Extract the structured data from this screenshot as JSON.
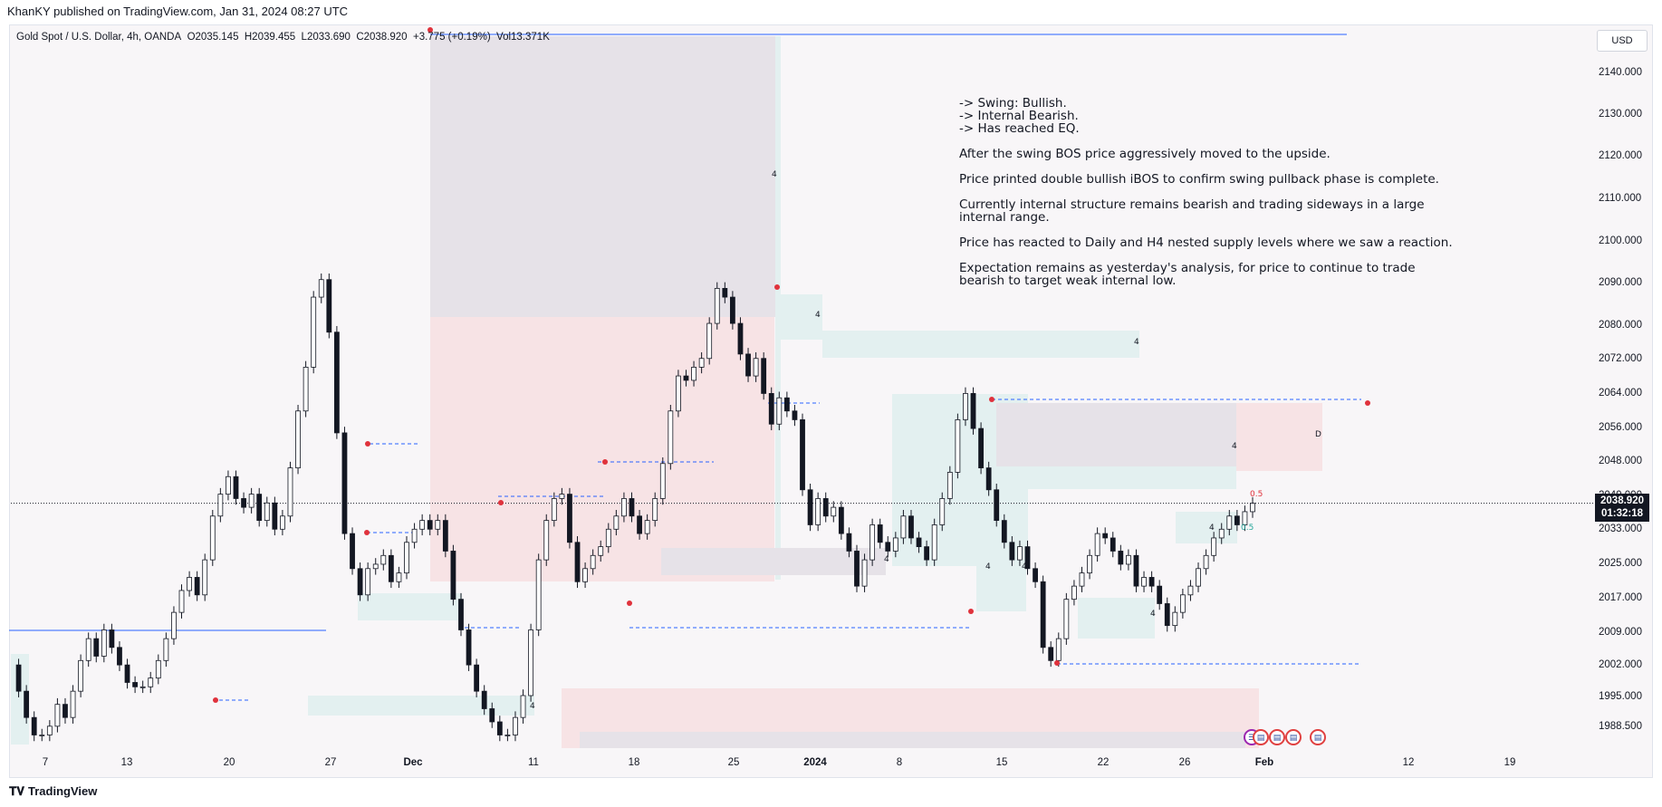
{
  "publish_bar": {
    "text": "KhanKY published on TradingView.com, Jan 31, 2024 08:27 UTC"
  },
  "legend": {
    "symbol": "Gold Spot / U.S. Dollar, 4h, OANDA",
    "open": "O2035.145",
    "high": "H2039.455",
    "low": "L2033.690",
    "close": "C2038.920",
    "change": "+3.775 (+0.19%)",
    "volume": "Vol13.371K"
  },
  "currency": "USD",
  "last_price": {
    "price": "2038.920",
    "countdown": "01:32:18"
  },
  "annotation": {
    "bullets": [
      "-> Swing: Bullish.",
      "-> Internal Bearish.",
      "-> Has reached EQ."
    ],
    "p1": "After the swing BOS price aggressively moved to the upside.",
    "p2": "Price printed double bullish iBOS to confirm swing pullback phase is complete.",
    "p3a": "Currently internal structure remains bearish and trading sideways in a large",
    "p3b": "internal range.",
    "p4": "Price has reacted to Daily and H4 nested supply levels where we saw a reaction.",
    "p5a": "Expectation remains as yesterday's analysis, for price to continue to trade",
    "p5b": "bearish to target weak internal low."
  },
  "footer": {
    "brand": "TradingView"
  },
  "colors": {
    "up": "#131722",
    "down": "#131722",
    "demand": "#e3f0f0",
    "supply": "#f7e3e5",
    "neutral": "#e6e2e8",
    "level": "#2962ff"
  },
  "chart_data": {
    "type": "line",
    "title": "Gold Spot / U.S. Dollar, 4h, OANDA",
    "price_axis_ticks": [
      "2140.000",
      "2130.000",
      "2120.000",
      "2110.000",
      "2100.000",
      "2090.000",
      "2080.000",
      "2072.000",
      "2064.000",
      "2056.000",
      "2048.000",
      "2040.000",
      "2033.000",
      "2025.000",
      "2017.000",
      "2009.000",
      "2002.000",
      "1995.000",
      "1988.500"
    ],
    "time_axis_ticks": [
      "7",
      "13",
      "20",
      "27",
      "Dec",
      "11",
      "18",
      "25",
      "2024",
      "8",
      "15",
      "22",
      "26",
      "Feb",
      "12",
      "19"
    ],
    "ylim": [
      1983,
      2146
    ],
    "series": [
      {
        "values": [
          2002,
          1996,
          1990,
          1986,
          1986,
          1988,
          1993,
          1990,
          1996,
          2003,
          2008,
          2004,
          2010,
          2006,
          2002,
          1998,
          1997,
          1997,
          1999,
          2003,
          2008,
          2014,
          2019,
          2022,
          2018,
          2026,
          2036,
          2041,
          2045,
          2040,
          2038,
          2041,
          2035,
          2039,
          2033,
          2036,
          2047,
          2060,
          2070,
          2086,
          2090,
          2078,
          2055,
          2032,
          2024,
          2018,
          2024,
          2025,
          2027,
          2021,
          2023,
          2030,
          2033,
          2035,
          2033,
          2035,
          2028,
          2017,
          2010,
          2002,
          1996,
          1992,
          1989,
          1986,
          1986,
          1990,
          1995,
          2010,
          2026,
          2035,
          2040,
          2041,
          2030,
          2021,
          2024,
          2027,
          2029,
          2033,
          2036,
          2040,
          2036,
          2032,
          2035,
          2040,
          2048,
          2060,
          2068,
          2067,
          2070,
          2072,
          2080,
          2088,
          2086,
          2080,
          2073,
          2068,
          2072,
          2064,
          2057,
          2063,
          2060,
          2058,
          2042,
          2034,
          2040,
          2036,
          2038,
          2032,
          2028,
          2020,
          2026,
          2034,
          2030,
          2028,
          2031,
          2036,
          2031,
          2029,
          2026,
          2034,
          2040,
          2046,
          2058,
          2064,
          2056,
          2047,
          2042,
          2035,
          2030,
          2026,
          2029,
          2024,
          2021,
          2006,
          2003,
          2008,
          2017,
          2020,
          2023,
          2027,
          2032,
          2031,
          2028,
          2025,
          2027,
          2020,
          2022,
          2020,
          2016,
          2011,
          2014,
          2018,
          2020,
          2024,
          2027,
          2031,
          2033,
          2036,
          2034,
          2037,
          2038.92
        ]
      }
    ],
    "markers": [
      {
        "label": "4"
      },
      {
        "label": "4"
      },
      {
        "label": "4"
      },
      {
        "label": "4"
      },
      {
        "label": "4"
      },
      {
        "label": "4"
      },
      {
        "label": "4"
      },
      {
        "label": "4"
      },
      {
        "label": "4"
      },
      {
        "label": "4"
      },
      {
        "label": "4"
      },
      {
        "label": "D"
      },
      {
        "label": "0.5"
      },
      {
        "label": "0.5"
      }
    ],
    "grid": false
  }
}
